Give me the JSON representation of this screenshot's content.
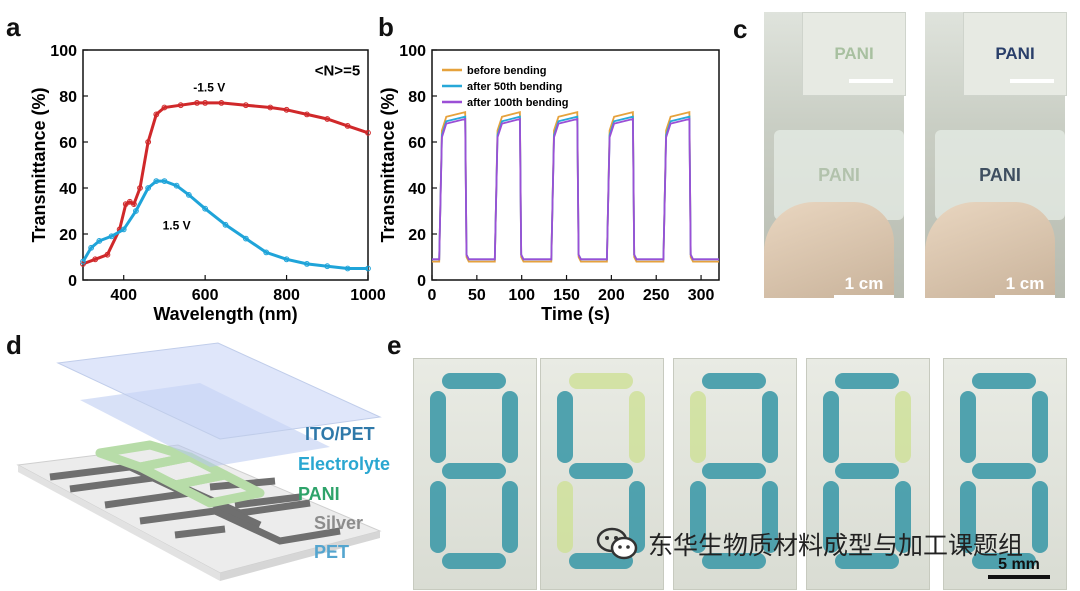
{
  "panels": {
    "a": "a",
    "b": "b",
    "c": "c",
    "d": "d",
    "e": "e"
  },
  "colors": {
    "red": "#d0282a",
    "blue": "#1fa4d9",
    "orange": "#e6a23c",
    "cyan": "#27a8d8",
    "purple": "#9b4fd6"
  },
  "chart_data": [
    {
      "type": "line",
      "panel": "a",
      "xlabel": "Wavelength (nm)",
      "ylabel": "Transmittance (%)",
      "xlim": [
        300,
        1000
      ],
      "ylim": [
        0,
        100
      ],
      "xticks": [
        400,
        600,
        800,
        1000
      ],
      "yticks": [
        0,
        20,
        40,
        60,
        80,
        100
      ],
      "annotation_n": "<N>=5",
      "series": [
        {
          "name": "-1.5 V",
          "color": "#d0282a",
          "x": [
            300,
            330,
            360,
            390,
            405,
            415,
            425,
            440,
            460,
            480,
            500,
            540,
            580,
            600,
            640,
            700,
            760,
            800,
            850,
            900,
            950,
            1000
          ],
          "y": [
            7,
            9,
            11,
            22,
            33,
            34,
            33,
            40,
            60,
            72,
            75,
            76,
            77,
            77,
            77,
            76,
            75,
            74,
            72,
            70,
            67,
            64
          ]
        },
        {
          "name": "1.5 V",
          "color": "#1fa4d9",
          "x": [
            300,
            320,
            340,
            370,
            400,
            430,
            460,
            480,
            500,
            530,
            560,
            600,
            650,
            700,
            750,
            800,
            850,
            900,
            950,
            1000
          ],
          "y": [
            8,
            14,
            17,
            19,
            22,
            30,
            40,
            43,
            43,
            41,
            37,
            31,
            24,
            18,
            12,
            9,
            7,
            6,
            5,
            5
          ]
        }
      ]
    },
    {
      "type": "line",
      "panel": "b",
      "xlabel": "Time (s)",
      "ylabel": "Transmittance (%)",
      "xlim": [
        0,
        320
      ],
      "ylim": [
        0,
        100
      ],
      "xticks": [
        0,
        50,
        100,
        150,
        200,
        250,
        300
      ],
      "yticks": [
        0,
        20,
        40,
        60,
        80,
        100
      ],
      "legend": "top-left",
      "series": [
        {
          "name": "before bending",
          "color": "#e6a23c",
          "peak": 73,
          "low": 8
        },
        {
          "name": "after 50th bending",
          "color": "#27a8d8",
          "peak": 71,
          "low": 9
        },
        {
          "name": "after 100th bending",
          "color": "#9b4fd6",
          "peak": 70,
          "low": 9
        }
      ],
      "cycles": [
        {
          "on": 8,
          "off": 37
        },
        {
          "on": 70,
          "off": 98
        },
        {
          "on": 133,
          "off": 162
        },
        {
          "on": 195,
          "off": 224
        },
        {
          "on": 258,
          "off": 287
        }
      ],
      "end": 320
    }
  ],
  "photo_c": {
    "scale": "1 cm",
    "word": "PANI"
  },
  "layers": [
    "ITO/PET",
    "Electrolyte",
    "PANI",
    "Silver",
    "PET"
  ],
  "layer_colors": [
    "#2f79a9",
    "#2aa7d1",
    "#2ea36a",
    "#8c8c8c",
    "#54a5cf"
  ],
  "photo_e": {
    "scale": "5 mm",
    "digits": [
      [
        1,
        1,
        1,
        1,
        1,
        1,
        1
      ],
      [
        0,
        1,
        0,
        1,
        0,
        1,
        1
      ],
      [
        1,
        0,
        1,
        1,
        1,
        1,
        1
      ],
      [
        1,
        1,
        0,
        1,
        1,
        1,
        1
      ],
      [
        1,
        1,
        1,
        1,
        1,
        1,
        1
      ]
    ]
  },
  "watermark": "东华生物质材料成型与加工课题组"
}
